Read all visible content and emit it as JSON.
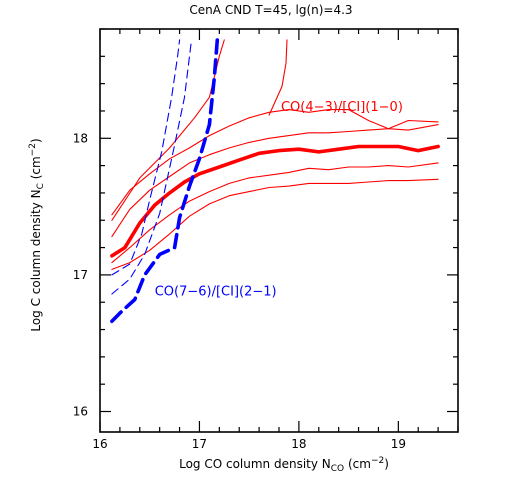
{
  "chart_data": {
    "type": "line",
    "title": "CenA CND T=45, lg(n)=4.3",
    "xlabel": {
      "base": "Log CO column density N",
      "sub": "CO",
      "unit_open": " (cm",
      "sup": "−2",
      "unit_close": ")"
    },
    "ylabel": {
      "base": "Log C column density N",
      "sub": "C",
      "unit_open": " (cm",
      "sup": "−2",
      "unit_close": ")"
    },
    "xlim": [
      16.0,
      19.6
    ],
    "ylim": [
      15.85,
      18.8
    ],
    "x_ticks": [
      16,
      17,
      18,
      19
    ],
    "y_ticks": [
      16,
      17,
      18
    ],
    "x_tick_labels": [
      "16",
      "17",
      "18",
      "19"
    ],
    "y_tick_labels": [
      "16",
      "17",
      "18"
    ],
    "x_minor_step": 0.2,
    "y_minor_step": 0.2,
    "grid": false,
    "colors": {
      "red": "#ff0000",
      "blue": "#0000ff",
      "axis": "#000000"
    },
    "annotations": [
      {
        "text": "CO(4−3)/[CI](1−0)",
        "x": 17.82,
        "y": 18.2,
        "color": "#ff0000"
      },
      {
        "text": "CO(7−6)/[CI](2−1)",
        "x": 16.55,
        "y": 16.85,
        "color": "#0000ff"
      }
    ],
    "series": [
      {
        "color": "#ff0000",
        "style": "solid",
        "weight": "thick",
        "x": [
          16.12,
          16.25,
          16.4,
          16.55,
          16.7,
          16.85,
          17.0,
          17.2,
          17.4,
          17.6,
          17.8,
          18.0,
          18.2,
          18.4,
          18.6,
          18.8,
          19.0,
          19.2,
          19.4
        ],
        "y": [
          17.14,
          17.2,
          17.38,
          17.51,
          17.6,
          17.68,
          17.74,
          17.79,
          17.84,
          17.89,
          17.91,
          17.92,
          17.9,
          17.92,
          17.94,
          17.94,
          17.94,
          17.91,
          17.94
        ]
      },
      {
        "color": "#ff0000",
        "style": "solid",
        "weight": "thin",
        "x": [
          16.12,
          16.3,
          16.5,
          16.7,
          16.9,
          17.1,
          17.3,
          17.5,
          17.7,
          17.9,
          18.1,
          18.3,
          18.5,
          18.7,
          18.9,
          19.1,
          19.4
        ],
        "y": [
          17.44,
          17.62,
          17.74,
          17.85,
          17.93,
          18.02,
          18.09,
          18.15,
          18.19,
          18.21,
          18.19,
          18.21,
          18.21,
          18.13,
          18.07,
          18.13,
          18.12
        ]
      },
      {
        "color": "#ff0000",
        "style": "solid",
        "weight": "thin",
        "x": [
          16.12,
          16.3,
          16.5,
          16.7,
          16.9,
          17.1,
          17.3,
          17.5,
          17.7,
          17.9,
          18.1,
          18.3,
          18.5,
          18.7,
          18.9,
          19.1,
          19.4
        ],
        "y": [
          17.28,
          17.48,
          17.62,
          17.72,
          17.82,
          17.88,
          17.93,
          17.97,
          18.0,
          18.02,
          18.04,
          18.04,
          18.05,
          18.06,
          18.07,
          18.06,
          18.1
        ]
      },
      {
        "color": "#ff0000",
        "style": "solid",
        "weight": "thin",
        "x": [
          16.12,
          16.3,
          16.5,
          16.7,
          16.9,
          17.1,
          17.3,
          17.5,
          17.7,
          17.9,
          18.1,
          18.3,
          18.5,
          18.7,
          18.9,
          19.1,
          19.4
        ],
        "y": [
          17.09,
          17.2,
          17.33,
          17.44,
          17.54,
          17.61,
          17.67,
          17.71,
          17.73,
          17.75,
          17.78,
          17.77,
          17.79,
          17.79,
          17.8,
          17.79,
          17.82
        ]
      },
      {
        "color": "#ff0000",
        "style": "solid",
        "weight": "thin",
        "x": [
          16.12,
          16.3,
          16.5,
          16.7,
          16.9,
          17.1,
          17.3,
          17.5,
          17.7,
          17.9,
          18.1,
          18.3,
          18.5,
          18.7,
          18.9,
          19.1,
          19.4
        ],
        "y": [
          17.04,
          17.09,
          17.18,
          17.3,
          17.43,
          17.52,
          17.58,
          17.61,
          17.64,
          17.65,
          17.67,
          17.67,
          17.67,
          17.68,
          17.69,
          17.69,
          17.7
        ]
      },
      {
        "color": "#ff0000",
        "style": "solid",
        "weight": "thin",
        "x": [
          16.12,
          16.4,
          16.7,
          16.95,
          17.1,
          17.15,
          17.2,
          17.25
        ],
        "y": [
          17.4,
          17.71,
          17.93,
          18.15,
          18.3,
          18.45,
          18.6,
          18.72
        ]
      },
      {
        "color": "#ff0000",
        "style": "solid",
        "weight": "thin",
        "x": [
          17.7,
          17.83,
          17.87,
          17.88
        ],
        "y": [
          18.17,
          18.38,
          18.55,
          18.72
        ]
      },
      {
        "color": "#0000ff",
        "style": "dashed",
        "weight": "thick",
        "x": [
          16.12,
          16.2,
          16.35,
          16.45,
          16.6,
          16.75,
          16.8,
          16.9,
          17.0,
          17.1,
          17.15,
          17.18
        ],
        "y": [
          16.66,
          16.72,
          16.82,
          17.0,
          17.15,
          17.2,
          17.42,
          17.65,
          17.85,
          18.1,
          18.45,
          18.72
        ]
      },
      {
        "color": "#0000ff",
        "style": "dashed",
        "weight": "thin",
        "x": [
          16.12,
          16.3,
          16.45,
          16.6,
          16.75,
          16.85,
          16.9,
          16.92
        ],
        "y": [
          16.86,
          16.97,
          17.15,
          17.45,
          17.95,
          18.3,
          18.6,
          18.72
        ]
      },
      {
        "color": "#0000ff",
        "style": "dashed",
        "weight": "thin",
        "x": [
          16.12,
          16.3,
          16.42,
          16.5,
          16.62,
          16.72,
          16.78,
          16.8
        ],
        "y": [
          17.0,
          17.08,
          17.3,
          17.55,
          17.9,
          18.3,
          18.6,
          18.72
        ]
      }
    ]
  }
}
